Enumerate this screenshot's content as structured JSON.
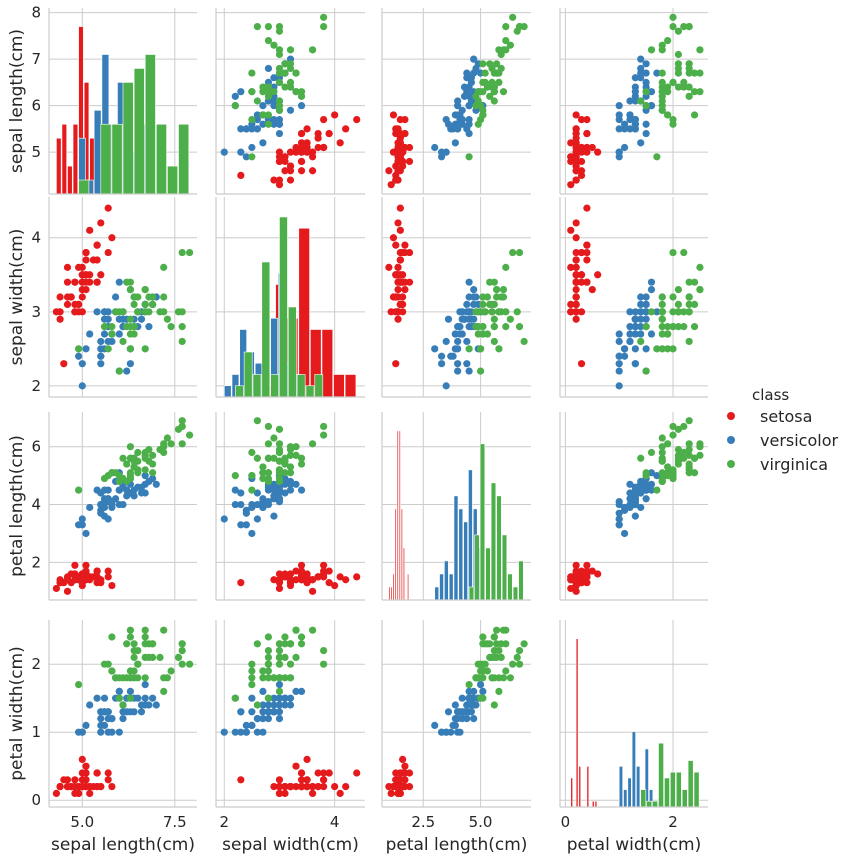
{
  "chart_data": {
    "type": "scatter",
    "title": "",
    "variables": [
      {
        "key": "sl",
        "label": "sepal length(cm)",
        "lim": [
          4.1,
          8.1
        ],
        "ticks": [
          5,
          6,
          7,
          8
        ],
        "xticks": [
          5.0,
          7.5
        ],
        "xtick_labels": [
          "5.0",
          "7.5"
        ]
      },
      {
        "key": "sw",
        "label": "sepal width(cm)",
        "lim": [
          1.85,
          4.55
        ],
        "ticks": [
          2,
          3,
          4
        ],
        "xticks": [
          2,
          4
        ],
        "xtick_labels": [
          "2",
          "4"
        ]
      },
      {
        "key": "pl",
        "label": "petal length(cm)",
        "lim": [
          0.7,
          7.2
        ],
        "ticks": [
          2,
          4,
          6
        ],
        "xticks": [
          2.5,
          5.0
        ],
        "xtick_labels": [
          "2.5",
          "5.0"
        ]
      },
      {
        "key": "pw",
        "label": "petal width(cm)",
        "lim": [
          -0.1,
          2.65
        ],
        "ticks": [
          0,
          1,
          2
        ],
        "xticks": [
          0,
          2
        ],
        "xtick_labels": [
          "0",
          "2"
        ]
      }
    ],
    "legend": {
      "title": "class",
      "position": "right",
      "entries": [
        "setosa",
        "versicolor",
        "virginica"
      ]
    },
    "colors": {
      "setosa": "#e41a1c",
      "versicolor": "#377eb8",
      "virginica": "#4daf4a"
    },
    "series": [
      {
        "name": "setosa",
        "points": [
          [
            5.1,
            3.5,
            1.4,
            0.2
          ],
          [
            4.9,
            3.0,
            1.4,
            0.2
          ],
          [
            4.7,
            3.2,
            1.3,
            0.2
          ],
          [
            4.6,
            3.1,
            1.5,
            0.2
          ],
          [
            5.0,
            3.6,
            1.4,
            0.2
          ],
          [
            5.4,
            3.9,
            1.7,
            0.4
          ],
          [
            4.6,
            3.4,
            1.4,
            0.3
          ],
          [
            5.0,
            3.4,
            1.5,
            0.2
          ],
          [
            4.4,
            2.9,
            1.4,
            0.2
          ],
          [
            4.9,
            3.1,
            1.5,
            0.1
          ],
          [
            5.4,
            3.7,
            1.5,
            0.2
          ],
          [
            4.8,
            3.4,
            1.6,
            0.2
          ],
          [
            4.8,
            3.0,
            1.4,
            0.1
          ],
          [
            4.3,
            3.0,
            1.1,
            0.1
          ],
          [
            5.8,
            4.0,
            1.2,
            0.2
          ],
          [
            5.7,
            4.4,
            1.5,
            0.4
          ],
          [
            5.4,
            3.9,
            1.3,
            0.4
          ],
          [
            5.1,
            3.5,
            1.4,
            0.3
          ],
          [
            5.7,
            3.8,
            1.7,
            0.3
          ],
          [
            5.1,
            3.8,
            1.5,
            0.3
          ],
          [
            5.4,
            3.4,
            1.7,
            0.2
          ],
          [
            5.1,
            3.7,
            1.5,
            0.4
          ],
          [
            4.6,
            3.6,
            1.0,
            0.2
          ],
          [
            5.1,
            3.3,
            1.7,
            0.5
          ],
          [
            4.8,
            3.4,
            1.9,
            0.2
          ],
          [
            5.0,
            3.0,
            1.6,
            0.2
          ],
          [
            5.0,
            3.4,
            1.6,
            0.4
          ],
          [
            5.2,
            3.5,
            1.5,
            0.2
          ],
          [
            5.2,
            3.4,
            1.4,
            0.2
          ],
          [
            4.7,
            3.2,
            1.6,
            0.2
          ],
          [
            4.8,
            3.1,
            1.6,
            0.2
          ],
          [
            5.4,
            3.4,
            1.5,
            0.4
          ],
          [
            5.2,
            4.1,
            1.5,
            0.1
          ],
          [
            5.5,
            4.2,
            1.4,
            0.2
          ],
          [
            4.9,
            3.1,
            1.5,
            0.2
          ],
          [
            5.0,
            3.2,
            1.2,
            0.2
          ],
          [
            5.5,
            3.5,
            1.3,
            0.2
          ],
          [
            4.9,
            3.6,
            1.4,
            0.1
          ],
          [
            4.4,
            3.0,
            1.3,
            0.2
          ],
          [
            5.1,
            3.4,
            1.5,
            0.2
          ],
          [
            5.0,
            3.5,
            1.3,
            0.3
          ],
          [
            4.5,
            2.3,
            1.3,
            0.3
          ],
          [
            4.4,
            3.2,
            1.3,
            0.2
          ],
          [
            5.0,
            3.5,
            1.6,
            0.6
          ],
          [
            5.1,
            3.8,
            1.9,
            0.4
          ],
          [
            4.8,
            3.0,
            1.4,
            0.3
          ],
          [
            5.1,
            3.8,
            1.6,
            0.2
          ],
          [
            4.6,
            3.2,
            1.4,
            0.2
          ],
          [
            5.3,
            3.7,
            1.5,
            0.2
          ],
          [
            5.0,
            3.3,
            1.4,
            0.2
          ]
        ]
      },
      {
        "name": "versicolor",
        "points": [
          [
            7.0,
            3.2,
            4.7,
            1.4
          ],
          [
            6.4,
            3.2,
            4.5,
            1.5
          ],
          [
            6.9,
            3.1,
            4.9,
            1.5
          ],
          [
            5.5,
            2.3,
            4.0,
            1.3
          ],
          [
            6.5,
            2.8,
            4.6,
            1.5
          ],
          [
            5.7,
            2.8,
            4.5,
            1.3
          ],
          [
            6.3,
            3.3,
            4.7,
            1.6
          ],
          [
            4.9,
            2.4,
            3.3,
            1.0
          ],
          [
            6.6,
            2.9,
            4.6,
            1.3
          ],
          [
            5.2,
            2.7,
            3.9,
            1.4
          ],
          [
            5.0,
            2.0,
            3.5,
            1.0
          ],
          [
            5.9,
            3.0,
            4.2,
            1.5
          ],
          [
            6.0,
            2.2,
            4.0,
            1.0
          ],
          [
            6.1,
            2.9,
            4.7,
            1.4
          ],
          [
            5.6,
            2.9,
            3.6,
            1.3
          ],
          [
            6.7,
            3.1,
            4.4,
            1.4
          ],
          [
            5.6,
            3.0,
            4.5,
            1.5
          ],
          [
            5.8,
            2.7,
            4.1,
            1.0
          ],
          [
            6.2,
            2.2,
            4.5,
            1.5
          ],
          [
            5.6,
            2.5,
            3.9,
            1.1
          ],
          [
            5.9,
            3.2,
            4.8,
            1.8
          ],
          [
            6.1,
            2.8,
            4.0,
            1.3
          ],
          [
            6.3,
            2.5,
            4.9,
            1.5
          ],
          [
            6.1,
            2.8,
            4.7,
            1.2
          ],
          [
            6.4,
            2.9,
            4.3,
            1.3
          ],
          [
            6.6,
            3.0,
            4.4,
            1.4
          ],
          [
            6.8,
            2.8,
            4.8,
            1.4
          ],
          [
            6.7,
            3.0,
            5.0,
            1.7
          ],
          [
            6.0,
            2.9,
            4.5,
            1.5
          ],
          [
            5.7,
            2.6,
            3.5,
            1.0
          ],
          [
            5.5,
            2.4,
            3.8,
            1.1
          ],
          [
            5.5,
            2.4,
            3.7,
            1.0
          ],
          [
            5.8,
            2.7,
            3.9,
            1.2
          ],
          [
            6.0,
            2.7,
            5.1,
            1.6
          ],
          [
            5.4,
            3.0,
            4.5,
            1.5
          ],
          [
            6.0,
            3.4,
            4.5,
            1.6
          ],
          [
            6.7,
            3.1,
            4.7,
            1.5
          ],
          [
            6.3,
            2.3,
            4.4,
            1.3
          ],
          [
            5.6,
            3.0,
            4.1,
            1.3
          ],
          [
            5.5,
            2.5,
            4.0,
            1.3
          ],
          [
            5.5,
            2.6,
            4.4,
            1.2
          ],
          [
            6.1,
            3.0,
            4.6,
            1.4
          ],
          [
            5.8,
            2.6,
            4.0,
            1.2
          ],
          [
            5.0,
            2.3,
            3.3,
            1.0
          ],
          [
            5.6,
            2.7,
            4.2,
            1.3
          ],
          [
            5.7,
            3.0,
            4.2,
            1.2
          ],
          [
            5.7,
            2.9,
            4.2,
            1.3
          ],
          [
            6.2,
            2.9,
            4.3,
            1.3
          ],
          [
            5.1,
            2.5,
            3.0,
            1.1
          ],
          [
            5.7,
            2.8,
            4.1,
            1.3
          ]
        ]
      },
      {
        "name": "virginica",
        "points": [
          [
            6.3,
            3.3,
            6.0,
            2.5
          ],
          [
            5.8,
            2.7,
            5.1,
            1.9
          ],
          [
            7.1,
            3.0,
            5.9,
            2.1
          ],
          [
            6.3,
            2.9,
            5.6,
            1.8
          ],
          [
            6.5,
            3.0,
            5.8,
            2.2
          ],
          [
            7.6,
            3.0,
            6.6,
            2.1
          ],
          [
            4.9,
            2.5,
            4.5,
            1.7
          ],
          [
            7.3,
            2.9,
            6.3,
            1.8
          ],
          [
            6.7,
            2.5,
            5.8,
            1.8
          ],
          [
            7.2,
            3.6,
            6.1,
            2.5
          ],
          [
            6.5,
            3.2,
            5.1,
            2.0
          ],
          [
            6.4,
            2.7,
            5.3,
            1.9
          ],
          [
            6.8,
            3.0,
            5.5,
            2.1
          ],
          [
            5.7,
            2.5,
            5.0,
            2.0
          ],
          [
            5.8,
            2.8,
            5.1,
            2.4
          ],
          [
            6.4,
            3.2,
            5.3,
            2.3
          ],
          [
            6.5,
            3.0,
            5.5,
            1.8
          ],
          [
            7.7,
            3.8,
            6.7,
            2.2
          ],
          [
            7.7,
            2.6,
            6.9,
            2.3
          ],
          [
            6.0,
            2.2,
            5.0,
            1.5
          ],
          [
            6.9,
            3.2,
            5.7,
            2.3
          ],
          [
            5.6,
            2.8,
            4.9,
            2.0
          ],
          [
            7.7,
            2.8,
            6.7,
            2.0
          ],
          [
            6.3,
            2.7,
            4.9,
            1.8
          ],
          [
            6.7,
            3.3,
            5.7,
            2.1
          ],
          [
            7.2,
            3.2,
            6.0,
            1.8
          ],
          [
            6.2,
            2.8,
            4.8,
            1.8
          ],
          [
            6.1,
            3.0,
            4.9,
            1.8
          ],
          [
            6.4,
            2.8,
            5.6,
            2.1
          ],
          [
            7.2,
            3.0,
            5.8,
            1.6
          ],
          [
            7.4,
            2.8,
            6.1,
            1.9
          ],
          [
            7.9,
            3.8,
            6.4,
            2.0
          ],
          [
            6.4,
            2.8,
            5.6,
            2.2
          ],
          [
            6.3,
            2.8,
            5.1,
            1.5
          ],
          [
            6.1,
            2.6,
            5.6,
            1.4
          ],
          [
            7.7,
            3.0,
            6.1,
            2.3
          ],
          [
            6.3,
            3.4,
            5.6,
            2.4
          ],
          [
            6.4,
            3.1,
            5.5,
            1.8
          ],
          [
            6.0,
            3.0,
            4.8,
            1.8
          ],
          [
            6.9,
            3.1,
            5.4,
            2.1
          ],
          [
            6.7,
            3.1,
            5.6,
            2.4
          ],
          [
            6.9,
            3.1,
            5.1,
            2.3
          ],
          [
            5.8,
            2.7,
            5.1,
            1.9
          ],
          [
            6.8,
            3.2,
            5.9,
            2.3
          ],
          [
            6.7,
            3.3,
            5.7,
            2.5
          ],
          [
            6.7,
            3.0,
            5.2,
            2.3
          ],
          [
            6.3,
            2.5,
            5.0,
            1.9
          ],
          [
            6.5,
            3.0,
            5.2,
            2.0
          ],
          [
            6.2,
            3.4,
            5.4,
            2.3
          ],
          [
            5.9,
            3.0,
            5.1,
            1.8
          ]
        ]
      }
    ]
  }
}
